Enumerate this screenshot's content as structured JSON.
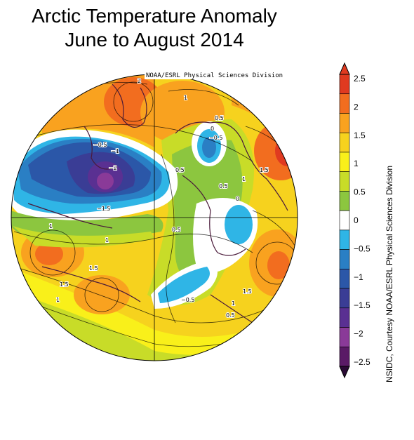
{
  "title": {
    "line1": "Arctic Temperature Anomaly",
    "line2": "June to August 2014"
  },
  "source_top": "NOAA/ESRL Physical Sciences Division",
  "side_credit": "NSIDC, Courtesy NOAA/ESRL Physical Sciences Division",
  "colorbar": {
    "levels": [
      2.5,
      2,
      1.5,
      1,
      0.5,
      0,
      -0.5,
      -1,
      -1.5,
      -2,
      -2.5
    ],
    "labels": [
      "2.5",
      "2",
      "1.5",
      "1",
      "0.5",
      "0",
      "−0.5",
      "−1",
      "−1.5",
      "−2",
      "−2.5"
    ],
    "colors": [
      "#e03a20",
      "#f26d1f",
      "#f9a21f",
      "#f6d21e",
      "#f9f01a",
      "#c8dc28",
      "#8cc63f",
      "#ffffff",
      "#2fb5e6",
      "#2a7fc4",
      "#2b57a8",
      "#3a3d95",
      "#5a3092",
      "#8a3a98",
      "#5a1a66"
    ]
  },
  "contour_labels": [
    "2",
    "1",
    "0.5",
    "0",
    "−0.5",
    "−1",
    "−2",
    "−1.5",
    "0.5",
    "1.5",
    "1",
    "0.5",
    "−0.5",
    "1.5",
    "1",
    "1.5",
    "1",
    "0",
    "0.5",
    "1.5",
    "1",
    "0.5",
    "−0.5",
    "1"
  ]
}
